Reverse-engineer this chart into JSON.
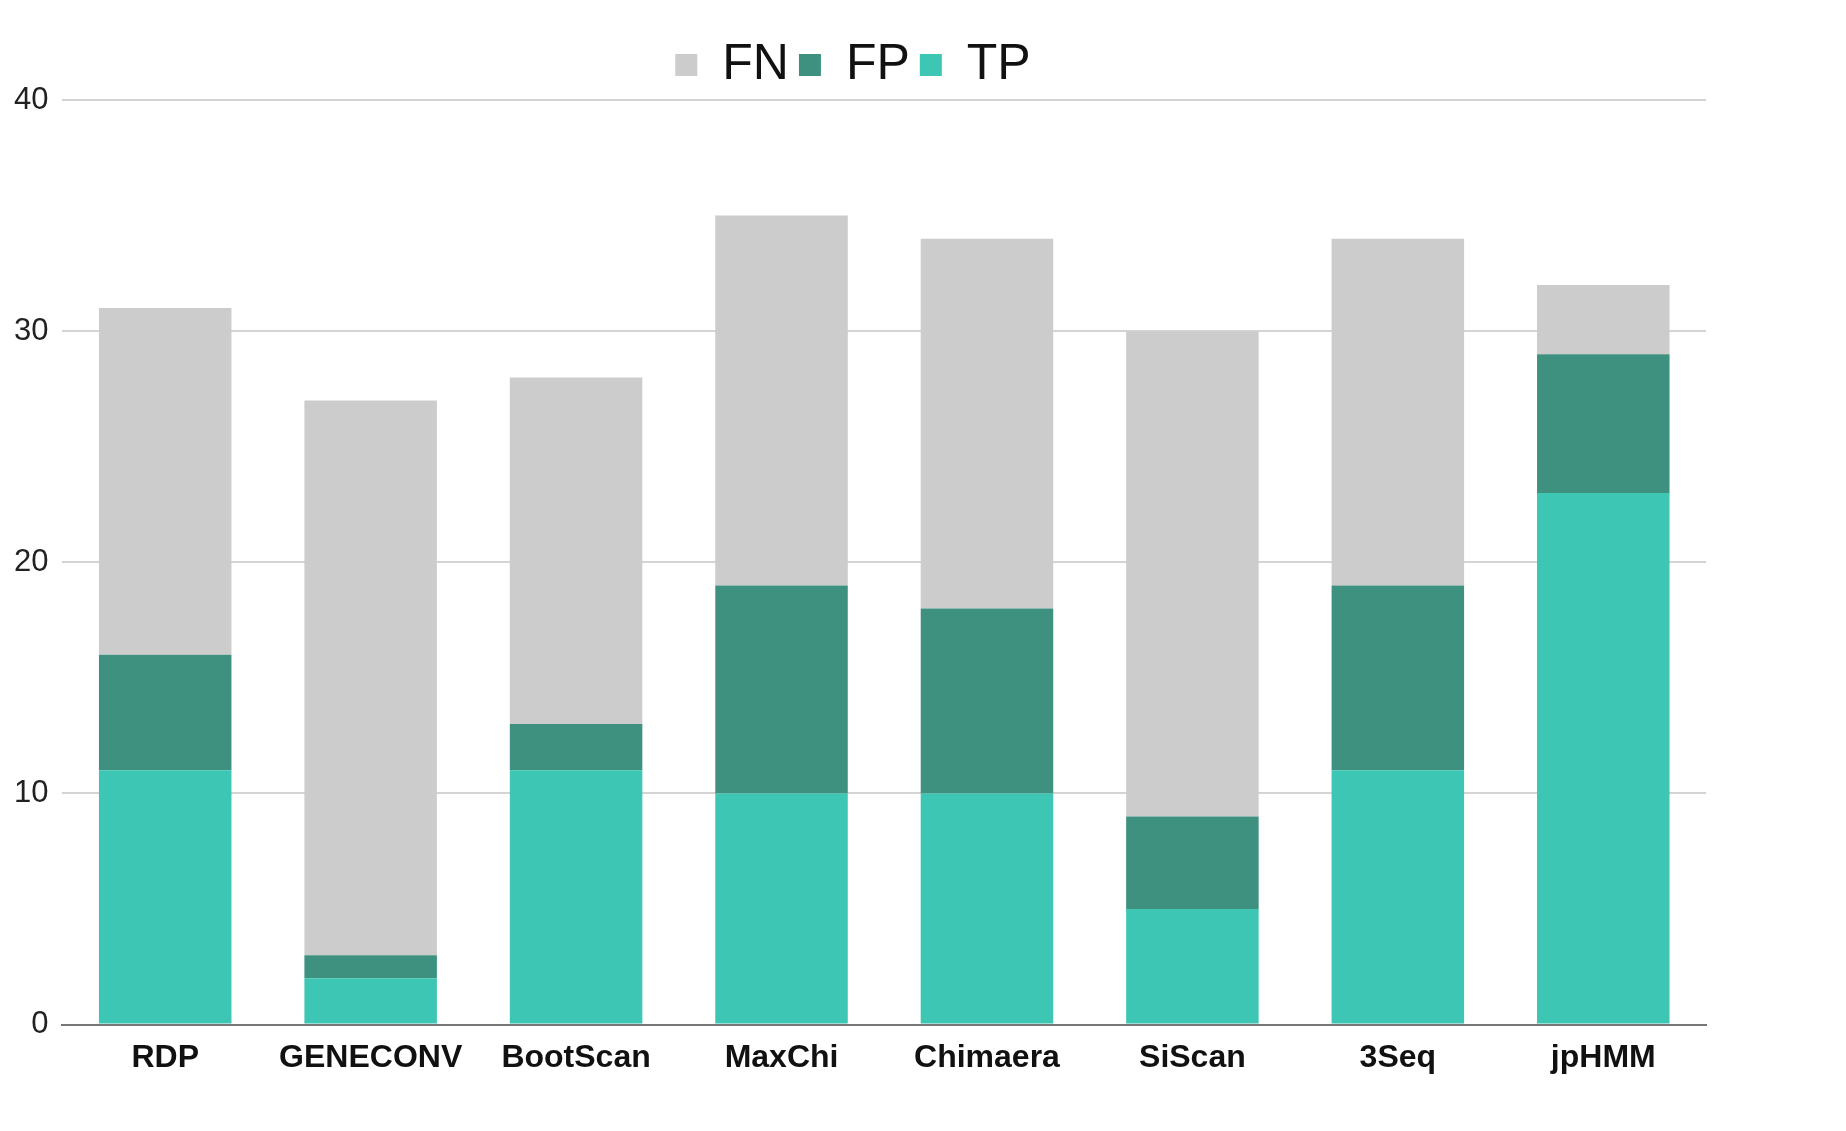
{
  "chart_data": {
    "type": "bar",
    "stacked": true,
    "categories": [
      "RDP",
      "GENECONV",
      "BootScan",
      "MaxChi",
      "Chimaera",
      "SiScan",
      "3Seq",
      "jpHMM"
    ],
    "series": [
      {
        "name": "TP",
        "color": "#3dc6b4",
        "values": [
          11,
          2,
          11,
          10,
          10,
          5,
          11,
          23
        ]
      },
      {
        "name": "FP",
        "color": "#3e917f",
        "values": [
          5,
          1,
          2,
          9,
          8,
          4,
          8,
          6
        ]
      },
      {
        "name": "FN",
        "color": "#cccccc",
        "values": [
          15,
          24,
          15,
          16,
          16,
          21,
          15,
          3
        ]
      }
    ],
    "ylim": [
      0,
      40
    ],
    "yticks": [
      0,
      10,
      20,
      30,
      40
    ],
    "grid": "y",
    "legend": "top"
  }
}
